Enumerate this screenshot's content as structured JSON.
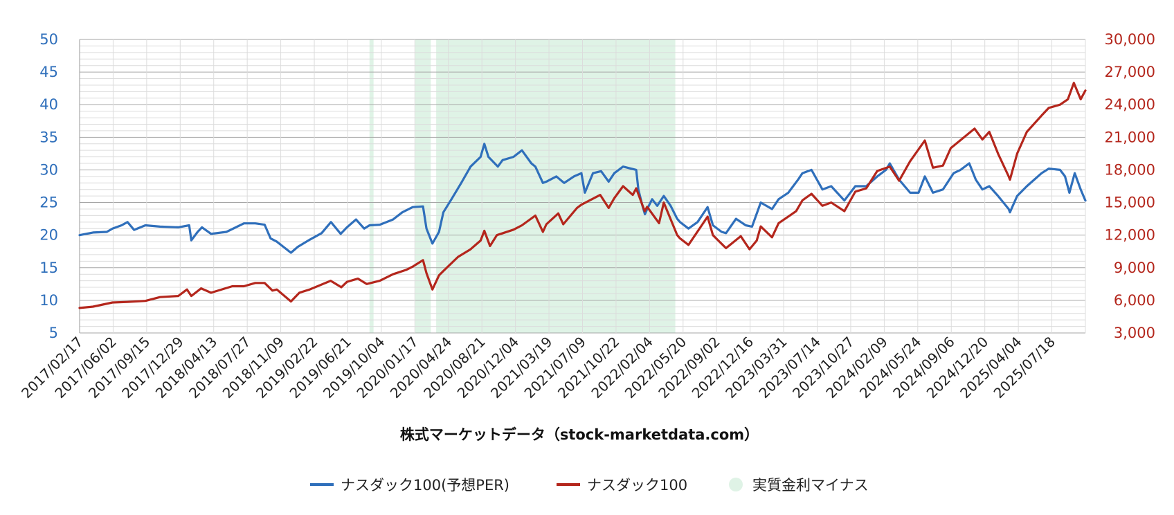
{
  "chart_data": {
    "type": "line",
    "title": "",
    "xlabel": "株式マーケットデータ（stock-marketdata.com）",
    "x_range": [
      "2017-02-17",
      "2025-12-05"
    ],
    "x_tick_labels": [
      "2017/02/17",
      "2017/06/02",
      "2017/09/15",
      "2017/12/29",
      "2018/04/13",
      "2018/07/27",
      "2018/11/09",
      "2019/02/22",
      "2019/06/21",
      "2019/10/04",
      "2020/01/17",
      "2020/04/24",
      "2020/08/21",
      "2020/12/04",
      "2021/03/19",
      "2021/07/09",
      "2021/10/22",
      "2022/02/04",
      "2022/05/20",
      "2022/09/02",
      "2022/12/16",
      "2023/03/31",
      "2023/07/14",
      "2023/10/27",
      "2024/02/09",
      "2024/05/24",
      "2024/09/06",
      "2024/12/20",
      "2025/04/04",
      "2025/07/18"
    ],
    "y_left": {
      "ylim": [
        5,
        50
      ],
      "ticks": [
        "50",
        "45",
        "40",
        "35",
        "30",
        "25",
        "20",
        "15",
        "10",
        "5"
      ],
      "color": "#2f6fbb"
    },
    "y_right": {
      "ylim": [
        3000,
        30000
      ],
      "ticks": [
        "30,000",
        "27,000",
        "24,000",
        "21,000",
        "18,000",
        "15,000",
        "12,000",
        "9,000",
        "6,000",
        "3,000"
      ],
      "color": "#b4261c"
    },
    "grid": true,
    "legend_position": "bottom",
    "series": [
      {
        "name": "ナスダック100(予想PER)",
        "axis": "left",
        "color": "#2f6fbb",
        "points": [
          [
            "2017-02-17",
            20.0
          ],
          [
            "2017-04-01",
            20.4
          ],
          [
            "2017-05-15",
            20.5
          ],
          [
            "2017-06-02",
            21.0
          ],
          [
            "2017-07-01",
            21.5
          ],
          [
            "2017-07-20",
            22.0
          ],
          [
            "2017-08-10",
            20.8
          ],
          [
            "2017-09-15",
            21.5
          ],
          [
            "2017-11-01",
            21.3
          ],
          [
            "2017-12-29",
            21.2
          ],
          [
            "2018-02-02",
            21.5
          ],
          [
            "2018-02-09",
            19.2
          ],
          [
            "2018-03-01",
            20.5
          ],
          [
            "2018-03-15",
            21.2
          ],
          [
            "2018-04-13",
            20.2
          ],
          [
            "2018-06-01",
            20.5
          ],
          [
            "2018-07-27",
            21.8
          ],
          [
            "2018-09-01",
            21.8
          ],
          [
            "2018-10-01",
            21.6
          ],
          [
            "2018-10-20",
            19.5
          ],
          [
            "2018-11-09",
            19.0
          ],
          [
            "2018-12-24",
            17.3
          ],
          [
            "2019-01-15",
            18.2
          ],
          [
            "2019-02-22",
            19.3
          ],
          [
            "2019-04-01",
            20.3
          ],
          [
            "2019-05-01",
            22.0
          ],
          [
            "2019-06-01",
            20.2
          ],
          [
            "2019-06-21",
            21.2
          ],
          [
            "2019-07-20",
            22.4
          ],
          [
            "2019-08-15",
            21.0
          ],
          [
            "2019-09-01",
            21.5
          ],
          [
            "2019-10-04",
            21.6
          ],
          [
            "2019-11-15",
            22.4
          ],
          [
            "2019-12-15",
            23.5
          ],
          [
            "2020-01-17",
            24.3
          ],
          [
            "2020-02-19",
            24.4
          ],
          [
            "2020-03-01",
            21.0
          ],
          [
            "2020-03-20",
            18.7
          ],
          [
            "2020-04-10",
            20.5
          ],
          [
            "2020-04-24",
            23.5
          ],
          [
            "2020-05-20",
            25.5
          ],
          [
            "2020-06-20",
            28.0
          ],
          [
            "2020-07-20",
            30.5
          ],
          [
            "2020-08-21",
            32.0
          ],
          [
            "2020-09-02",
            34.0
          ],
          [
            "2020-09-15",
            32.0
          ],
          [
            "2020-10-15",
            30.5
          ],
          [
            "2020-10-30",
            31.5
          ],
          [
            "2020-12-04",
            32.0
          ],
          [
            "2020-12-31",
            33.0
          ],
          [
            "2021-01-30",
            31.0
          ],
          [
            "2021-02-12",
            30.5
          ],
          [
            "2021-03-08",
            28.0
          ],
          [
            "2021-03-19",
            28.2
          ],
          [
            "2021-04-20",
            29.0
          ],
          [
            "2021-05-15",
            28.0
          ],
          [
            "2021-06-15",
            29.0
          ],
          [
            "2021-07-09",
            29.5
          ],
          [
            "2021-07-20",
            26.5
          ],
          [
            "2021-08-15",
            29.5
          ],
          [
            "2021-09-10",
            29.8
          ],
          [
            "2021-10-04",
            28.2
          ],
          [
            "2021-10-22",
            29.5
          ],
          [
            "2021-11-19",
            30.5
          ],
          [
            "2021-12-31",
            30.0
          ],
          [
            "2022-01-07",
            27.0
          ],
          [
            "2022-01-20",
            24.5
          ],
          [
            "2022-01-28",
            23.2
          ],
          [
            "2022-02-04",
            24.0
          ],
          [
            "2022-02-20",
            25.5
          ],
          [
            "2022-03-08",
            24.5
          ],
          [
            "2022-03-29",
            26.0
          ],
          [
            "2022-04-20",
            24.5
          ],
          [
            "2022-05-11",
            22.5
          ],
          [
            "2022-05-20",
            22.0
          ],
          [
            "2022-06-16",
            21.0
          ],
          [
            "2022-07-15",
            22.0
          ],
          [
            "2022-08-16",
            24.3
          ],
          [
            "2022-09-02",
            21.5
          ],
          [
            "2022-09-30",
            20.5
          ],
          [
            "2022-10-14",
            20.3
          ],
          [
            "2022-11-15",
            22.5
          ],
          [
            "2022-12-16",
            21.5
          ],
          [
            "2023-01-05",
            21.3
          ],
          [
            "2023-02-02",
            25.0
          ],
          [
            "2023-03-10",
            24.0
          ],
          [
            "2023-03-31",
            25.5
          ],
          [
            "2023-05-01",
            26.5
          ],
          [
            "2023-06-01",
            28.5
          ],
          [
            "2023-06-15",
            29.5
          ],
          [
            "2023-07-14",
            30.0
          ],
          [
            "2023-08-18",
            27.0
          ],
          [
            "2023-09-15",
            27.5
          ],
          [
            "2023-10-27",
            25.3
          ],
          [
            "2023-12-01",
            27.5
          ],
          [
            "2024-01-05",
            27.5
          ],
          [
            "2024-02-09",
            29.0
          ],
          [
            "2024-03-08",
            30.0
          ],
          [
            "2024-03-20",
            31.0
          ],
          [
            "2024-04-19",
            28.5
          ],
          [
            "2024-05-24",
            26.5
          ],
          [
            "2024-06-20",
            26.5
          ],
          [
            "2024-07-10",
            29.0
          ],
          [
            "2024-08-05",
            26.5
          ],
          [
            "2024-09-06",
            27.0
          ],
          [
            "2024-10-10",
            29.5
          ],
          [
            "2024-11-01",
            30.0
          ],
          [
            "2024-11-29",
            31.0
          ],
          [
            "2024-12-20",
            28.5
          ],
          [
            "2025-01-10",
            27.0
          ],
          [
            "2025-02-01",
            27.5
          ],
          [
            "2025-03-01",
            26.0
          ],
          [
            "2025-04-04",
            24.0
          ],
          [
            "2025-04-08",
            23.5
          ],
          [
            "2025-05-01",
            26.0
          ],
          [
            "2025-06-01",
            27.5
          ],
          [
            "2025-07-18",
            29.5
          ],
          [
            "2025-08-10",
            30.2
          ],
          [
            "2025-09-15",
            30.0
          ],
          [
            "2025-10-01",
            29.0
          ],
          [
            "2025-10-15",
            26.5
          ],
          [
            "2025-11-01",
            29.5
          ],
          [
            "2025-11-20",
            27.0
          ],
          [
            "2025-12-05",
            25.3
          ]
        ]
      },
      {
        "name": "ナスダック100",
        "axis": "right",
        "color": "#b4261c",
        "points": [
          [
            "2017-02-17",
            5300
          ],
          [
            "2017-04-01",
            5420
          ],
          [
            "2017-06-02",
            5800
          ],
          [
            "2017-07-20",
            5850
          ],
          [
            "2017-09-15",
            5950
          ],
          [
            "2017-11-01",
            6300
          ],
          [
            "2017-12-29",
            6400
          ],
          [
            "2018-01-26",
            7000
          ],
          [
            "2018-02-09",
            6400
          ],
          [
            "2018-03-12",
            7100
          ],
          [
            "2018-04-13",
            6700
          ],
          [
            "2018-06-20",
            7300
          ],
          [
            "2018-07-27",
            7300
          ],
          [
            "2018-09-01",
            7600
          ],
          [
            "2018-10-01",
            7600
          ],
          [
            "2018-10-26",
            6900
          ],
          [
            "2018-11-09",
            7000
          ],
          [
            "2018-12-24",
            5900
          ],
          [
            "2019-01-20",
            6700
          ],
          [
            "2019-02-22",
            7000
          ],
          [
            "2019-04-30",
            7800
          ],
          [
            "2019-06-03",
            7200
          ],
          [
            "2019-06-21",
            7700
          ],
          [
            "2019-07-26",
            8000
          ],
          [
            "2019-08-23",
            7500
          ],
          [
            "2019-10-04",
            7800
          ],
          [
            "2019-11-15",
            8400
          ],
          [
            "2019-12-27",
            8800
          ],
          [
            "2020-01-17",
            9100
          ],
          [
            "2020-02-19",
            9700
          ],
          [
            "2020-03-01",
            8500
          ],
          [
            "2020-03-20",
            7000
          ],
          [
            "2020-04-10",
            8300
          ],
          [
            "2020-04-24",
            8700
          ],
          [
            "2020-06-10",
            10000
          ],
          [
            "2020-07-20",
            10700
          ],
          [
            "2020-08-21",
            11500
          ],
          [
            "2020-09-02",
            12400
          ],
          [
            "2020-09-20",
            11000
          ],
          [
            "2020-10-12",
            12000
          ],
          [
            "2020-12-04",
            12500
          ],
          [
            "2020-12-31",
            12900
          ],
          [
            "2021-02-12",
            13800
          ],
          [
            "2021-03-08",
            12300
          ],
          [
            "2021-03-19",
            13000
          ],
          [
            "2021-04-26",
            14000
          ],
          [
            "2021-05-12",
            13000
          ],
          [
            "2021-06-25",
            14500
          ],
          [
            "2021-07-09",
            14800
          ],
          [
            "2021-09-07",
            15700
          ],
          [
            "2021-10-04",
            14500
          ],
          [
            "2021-10-22",
            15400
          ],
          [
            "2021-11-19",
            16500
          ],
          [
            "2021-12-20",
            15700
          ],
          [
            "2021-12-31",
            16300
          ],
          [
            "2022-01-27",
            14200
          ],
          [
            "2022-02-04",
            14600
          ],
          [
            "2022-03-14",
            13100
          ],
          [
            "2022-03-29",
            15000
          ],
          [
            "2022-05-11",
            12000
          ],
          [
            "2022-05-20",
            11700
          ],
          [
            "2022-06-16",
            11100
          ],
          [
            "2022-08-16",
            13700
          ],
          [
            "2022-09-02",
            12000
          ],
          [
            "2022-10-14",
            10800
          ],
          [
            "2022-11-30",
            11900
          ],
          [
            "2022-12-28",
            10700
          ],
          [
            "2023-01-20",
            11500
          ],
          [
            "2023-02-02",
            12800
          ],
          [
            "2023-03-10",
            11800
          ],
          [
            "2023-03-31",
            13100
          ],
          [
            "2023-05-26",
            14200
          ],
          [
            "2023-06-15",
            15200
          ],
          [
            "2023-07-14",
            15800
          ],
          [
            "2023-08-18",
            14700
          ],
          [
            "2023-09-15",
            15000
          ],
          [
            "2023-10-27",
            14200
          ],
          [
            "2023-12-01",
            16000
          ],
          [
            "2024-01-05",
            16300
          ],
          [
            "2024-02-09",
            17900
          ],
          [
            "2024-03-20",
            18300
          ],
          [
            "2024-04-19",
            17000
          ],
          [
            "2024-05-24",
            18800
          ],
          [
            "2024-07-10",
            20700
          ],
          [
            "2024-08-05",
            18200
          ],
          [
            "2024-09-06",
            18400
          ],
          [
            "2024-10-01",
            20000
          ],
          [
            "2024-12-16",
            21800
          ],
          [
            "2025-01-10",
            20800
          ],
          [
            "2025-02-01",
            21500
          ],
          [
            "2025-03-01",
            19500
          ],
          [
            "2025-04-04",
            17400
          ],
          [
            "2025-04-08",
            17100
          ],
          [
            "2025-05-01",
            19500
          ],
          [
            "2025-06-01",
            21500
          ],
          [
            "2025-07-18",
            23000
          ],
          [
            "2025-08-10",
            23700
          ],
          [
            "2025-09-15",
            24000
          ],
          [
            "2025-10-10",
            24500
          ],
          [
            "2025-10-29",
            26000
          ],
          [
            "2025-11-20",
            24500
          ],
          [
            "2025-12-05",
            25300
          ]
        ]
      }
    ],
    "shaded_regions": {
      "name": "実質金利マイナス",
      "color": "#dff3e6",
      "ranges": [
        [
          "2019-09-01",
          "2019-09-14"
        ],
        [
          "2020-01-25",
          "2020-03-15"
        ],
        [
          "2020-04-01",
          "2022-05-05"
        ]
      ]
    }
  }
}
